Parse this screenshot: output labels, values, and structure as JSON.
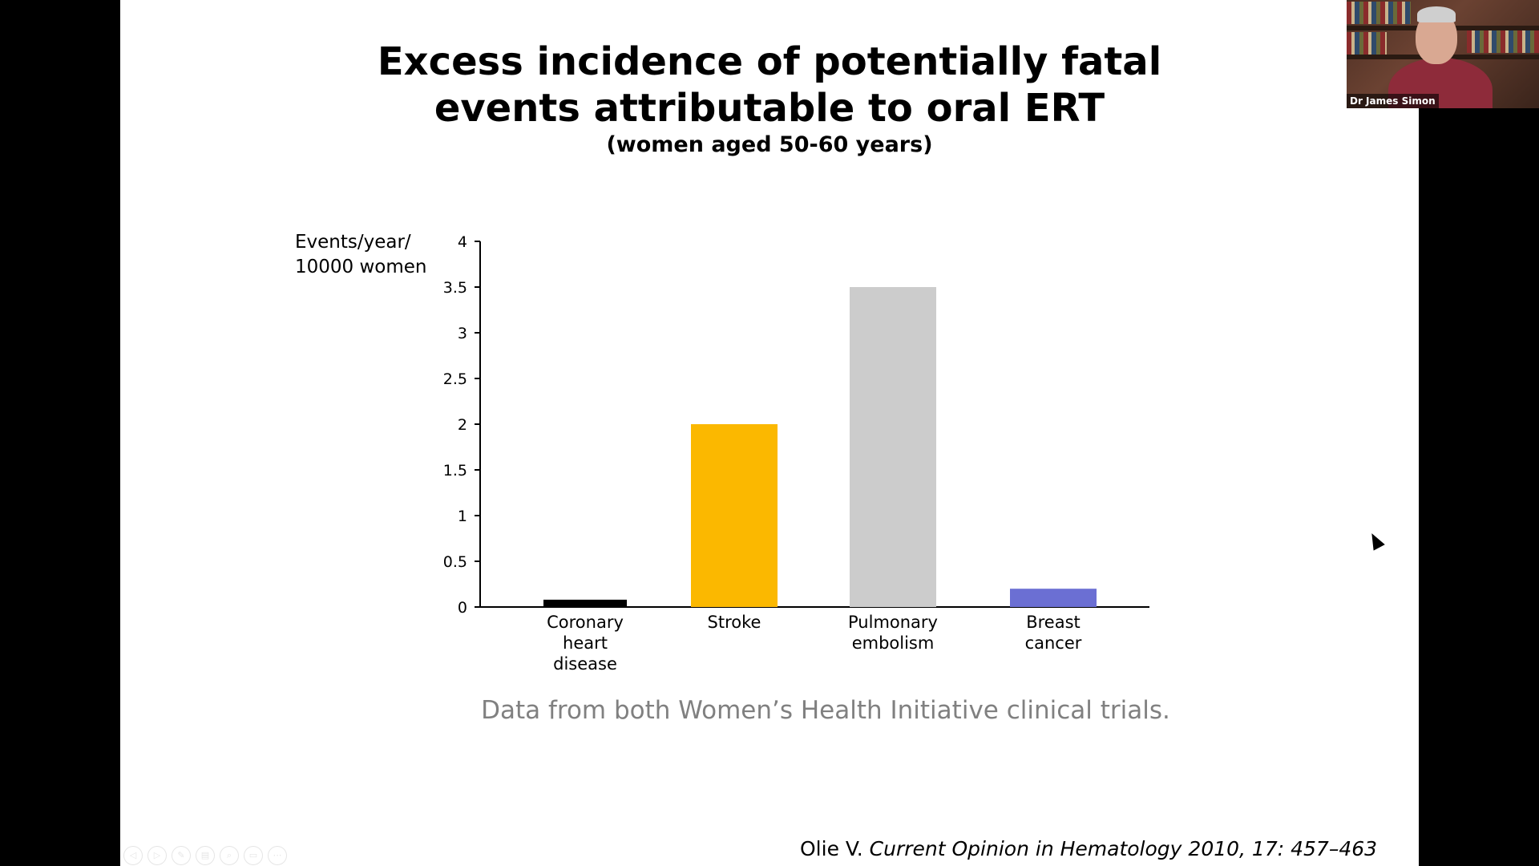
{
  "slide": {
    "title_lines": [
      "Excess incidence of potentially fatal",
      "events attributable to oral ERT"
    ],
    "subtitle": "(women aged 50-60 years)",
    "caption": "Data from both Women’s Health Initiative clinical trials.",
    "citation_author": "Olie V. ",
    "citation_source": "Current Opinion in Hematology 2010, 17: 457–463"
  },
  "chart_data": {
    "type": "bar",
    "title": "Excess incidence of potentially fatal events attributable to oral ERT",
    "subtitle": "(women aged 50-60 years)",
    "ylabel": "Events/year/ 10000 women",
    "ylabel_lines": [
      "Events/year/",
      "10000 women"
    ],
    "xlabel": "",
    "categories": [
      "Coronary heart disease",
      "Stroke",
      "Pulmonary embolism",
      "Breast cancer"
    ],
    "category_label_lines": [
      [
        "Coronary",
        "heart",
        "disease"
      ],
      [
        "Stroke"
      ],
      [
        "Pulmonary",
        "embolism"
      ],
      [
        "Breast",
        "cancer"
      ]
    ],
    "values": [
      0.08,
      2.0,
      3.5,
      0.2
    ],
    "colors": [
      "#000000",
      "#fbb800",
      "#cccccc",
      "#6b6fd3"
    ],
    "ylim": [
      0,
      4
    ],
    "yticks": [
      0,
      0.5,
      1,
      1.5,
      2,
      2.5,
      3,
      3.5,
      4
    ],
    "ytick_labels": [
      "0",
      "0.5",
      "1",
      "1.5",
      "2",
      "2.5",
      "3",
      "3.5",
      "4"
    ],
    "grid": false,
    "legend": "none"
  },
  "webcam": {
    "name": "Dr James Simon"
  },
  "icons": {
    "cursor": "mouse-pointer-icon",
    "slide_nav": [
      "prev-slide-icon",
      "next-slide-icon",
      "pen-icon",
      "slides-icon",
      "zoom-icon",
      "subtitles-icon",
      "more-icon"
    ]
  },
  "nav_glyphs": [
    "◁",
    "▷",
    "✎",
    "▤",
    "⌕",
    "▭",
    "⋯"
  ]
}
